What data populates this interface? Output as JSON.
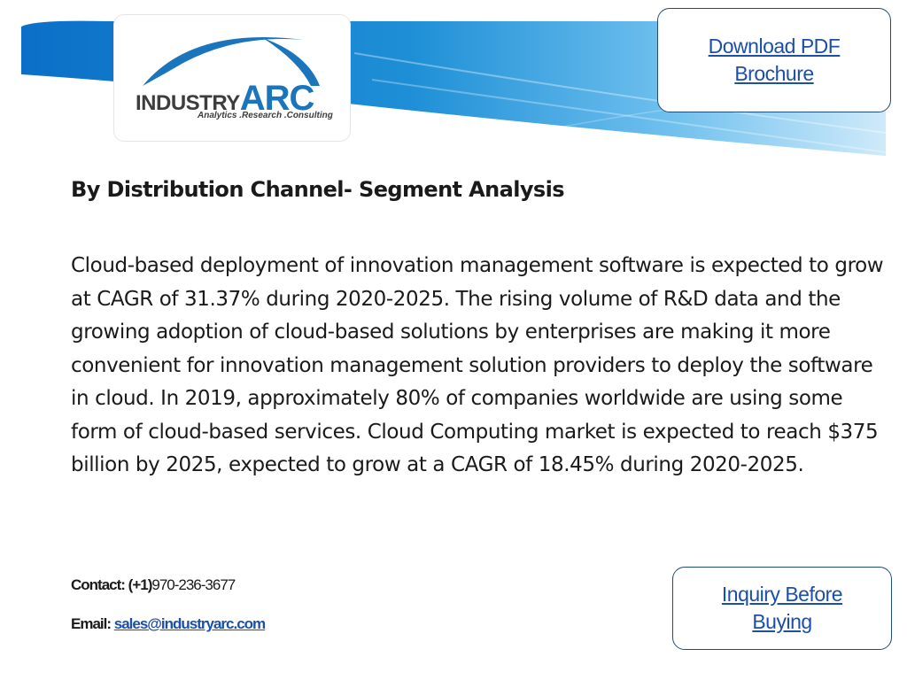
{
  "brand": {
    "logo_word_1": "INDUSTRY",
    "logo_word_2": "ARC",
    "tagline": "Analytics .Research .Consulting",
    "colors": {
      "blue": "#1b75bc",
      "gray": "#3d3d3d",
      "banner_blue": "#1e8fd6"
    }
  },
  "links": {
    "download_line1": "Download PDF",
    "download_line2": "Brochure",
    "inquiry_line1": "Inquiry Before",
    "inquiry_line2": "Buying"
  },
  "content": {
    "heading": "By Distribution Channel- Segment Analysis",
    "paragraph": "Cloud-based deployment of innovation management software is expected to grow at CAGR of 31.37% during 2020-2025. The rising volume of R&D data and the growing adoption of cloud-based solutions by enterprises are making it more convenient for innovation management solution providers to deploy the software in cloud. In 2019, approximately 80% of companies worldwide are using some form of cloud-based services. Cloud Computing market is expected to reach $375 billion by 2025, expected to grow at a CAGR of 18.45% during 2020-2025."
  },
  "footer": {
    "contact_label": "Contact: (+1)",
    "contact_number": "970-236-3677",
    "email_label": "Email:",
    "email_address": "sales@industryarc.com"
  }
}
